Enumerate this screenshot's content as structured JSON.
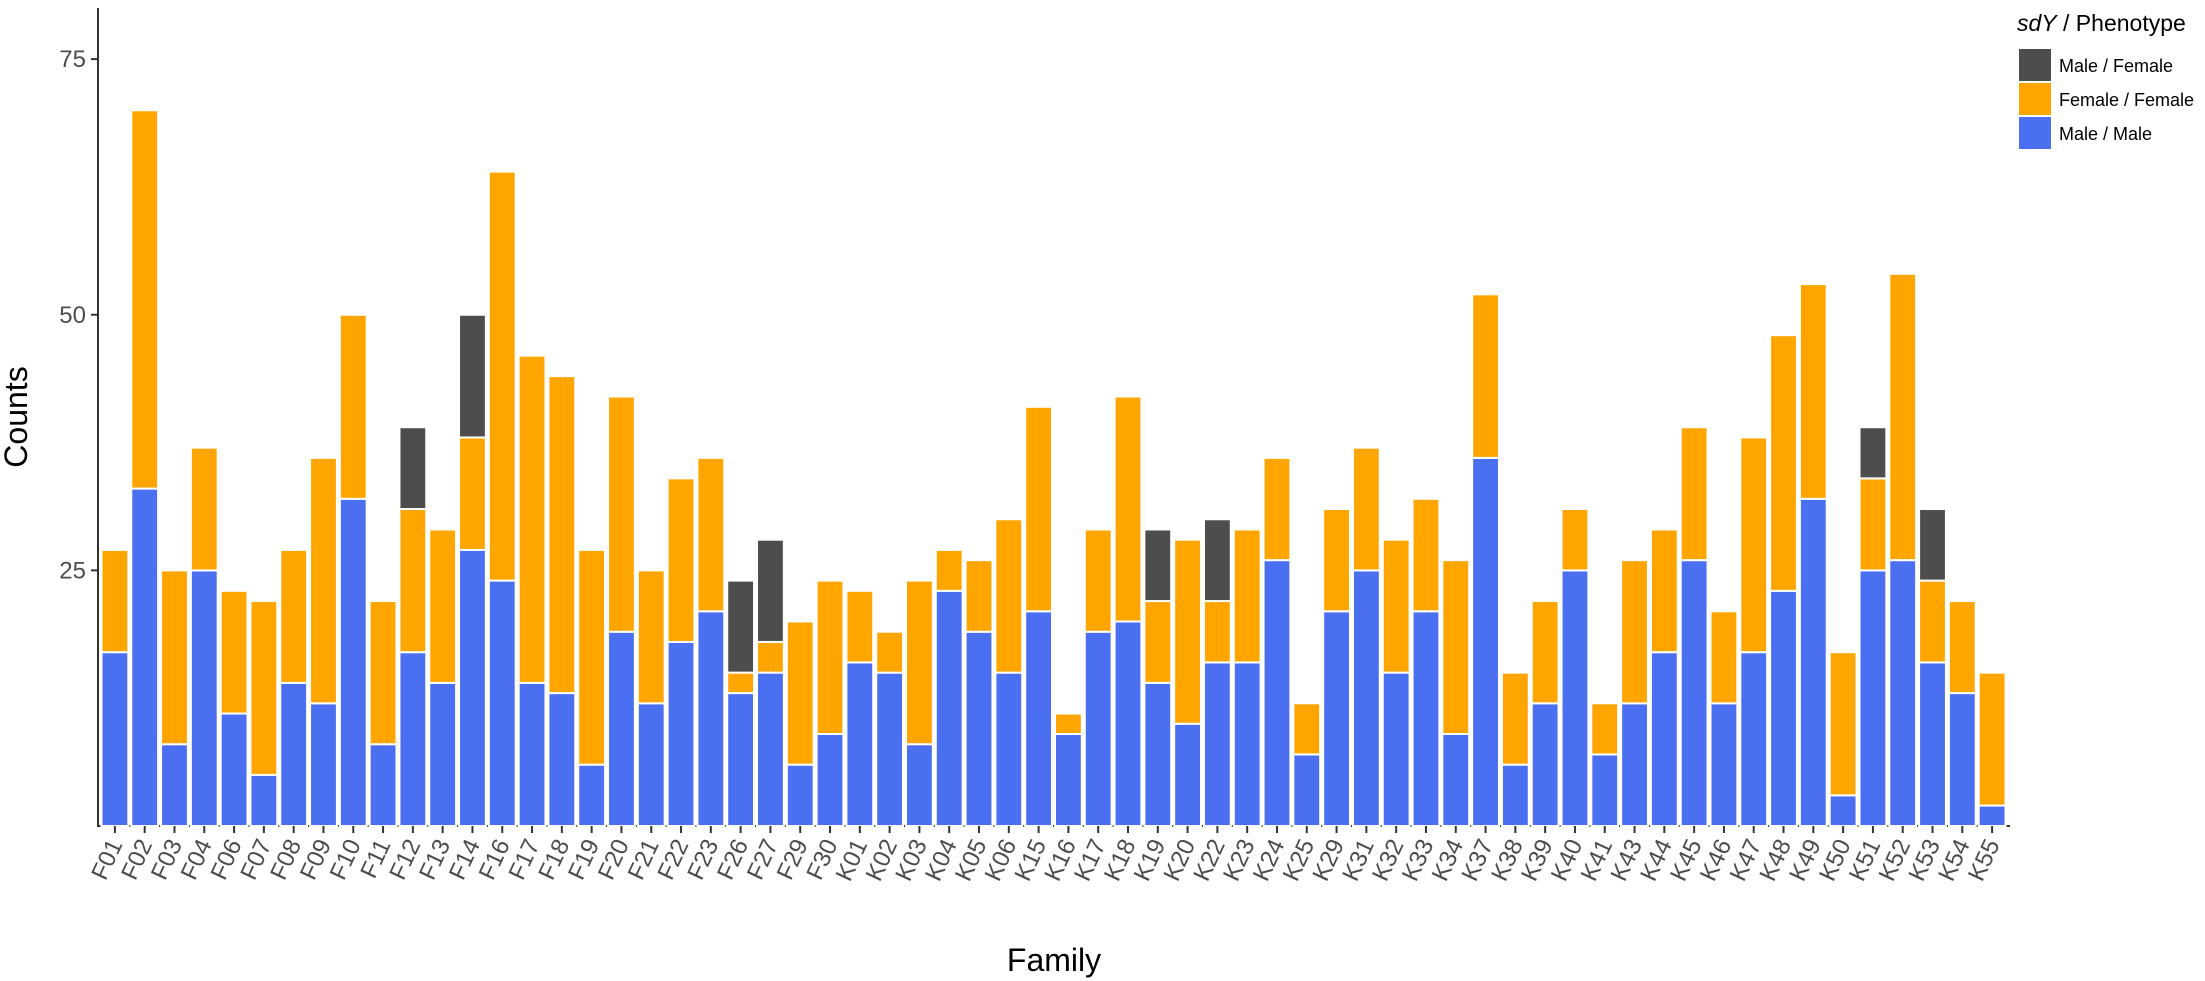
{
  "chart_data": {
    "type": "bar",
    "stacked": true,
    "xlabel": "Family",
    "ylabel": "Counts",
    "ylim": [
      0,
      80
    ],
    "yticks": [
      25,
      50,
      75
    ],
    "grid": false,
    "legend": {
      "title_italic": "sdY",
      "title_rest": " / Phenotype",
      "placement": "top-right"
    },
    "categories": [
      "F01",
      "F02",
      "F03",
      "F04",
      "F06",
      "F07",
      "F08",
      "F09",
      "F10",
      "F11",
      "F12",
      "F13",
      "F14",
      "F16",
      "F17",
      "F18",
      "F19",
      "F20",
      "F21",
      "F22",
      "F23",
      "F26",
      "F27",
      "F29",
      "F30",
      "K01",
      "K02",
      "K03",
      "K04",
      "K05",
      "K06",
      "K15",
      "K16",
      "K17",
      "K18",
      "K19",
      "K20",
      "K22",
      "K23",
      "K24",
      "K25",
      "K29",
      "K31",
      "K32",
      "K33",
      "K34",
      "K37",
      "K38",
      "K39",
      "K40",
      "K41",
      "K43",
      "K44",
      "K45",
      "K46",
      "K47",
      "K48",
      "K49",
      "K50",
      "K51",
      "K52",
      "K53",
      "K54",
      "K55"
    ],
    "series": [
      {
        "name": "Male / Male",
        "color": "#4a6ff0",
        "values": [
          17,
          33,
          8,
          25,
          11,
          5,
          14,
          12,
          32,
          8,
          17,
          14,
          27,
          24,
          14,
          13,
          6,
          19,
          12,
          18,
          21,
          13,
          15,
          6,
          9,
          16,
          15,
          8,
          23,
          19,
          15,
          21,
          9,
          19,
          20,
          14,
          10,
          16,
          16,
          26,
          7,
          21,
          25,
          15,
          21,
          9,
          36,
          6,
          12,
          25,
          7,
          12,
          17,
          26,
          12,
          17,
          23,
          32,
          3,
          25,
          26,
          16,
          13,
          2
        ]
      },
      {
        "name": "Female / Female",
        "color": "#ffa500",
        "values": [
          10,
          37,
          17,
          12,
          12,
          17,
          13,
          24,
          18,
          14,
          14,
          15,
          11,
          40,
          32,
          31,
          21,
          23,
          13,
          16,
          15,
          2,
          3,
          14,
          15,
          7,
          4,
          16,
          4,
          7,
          15,
          20,
          2,
          10,
          22,
          8,
          18,
          6,
          13,
          10,
          5,
          10,
          12,
          13,
          11,
          17,
          16,
          9,
          10,
          6,
          5,
          14,
          12,
          13,
          9,
          21,
          25,
          21,
          14,
          9,
          28,
          8,
          9,
          13
        ]
      },
      {
        "name": "Male / Female",
        "color": "#4d4d4d",
        "values": [
          0,
          0,
          0,
          0,
          0,
          0,
          0,
          0,
          0,
          0,
          8,
          0,
          12,
          0,
          0,
          0,
          0,
          0,
          0,
          0,
          0,
          9,
          10,
          0,
          0,
          0,
          0,
          0,
          0,
          0,
          0,
          0,
          0,
          0,
          0,
          7,
          0,
          8,
          0,
          0,
          0,
          0,
          0,
          0,
          0,
          0,
          0,
          0,
          0,
          0,
          0,
          0,
          0,
          0,
          0,
          0,
          0,
          0,
          0,
          5,
          0,
          7,
          0,
          0
        ]
      }
    ]
  }
}
